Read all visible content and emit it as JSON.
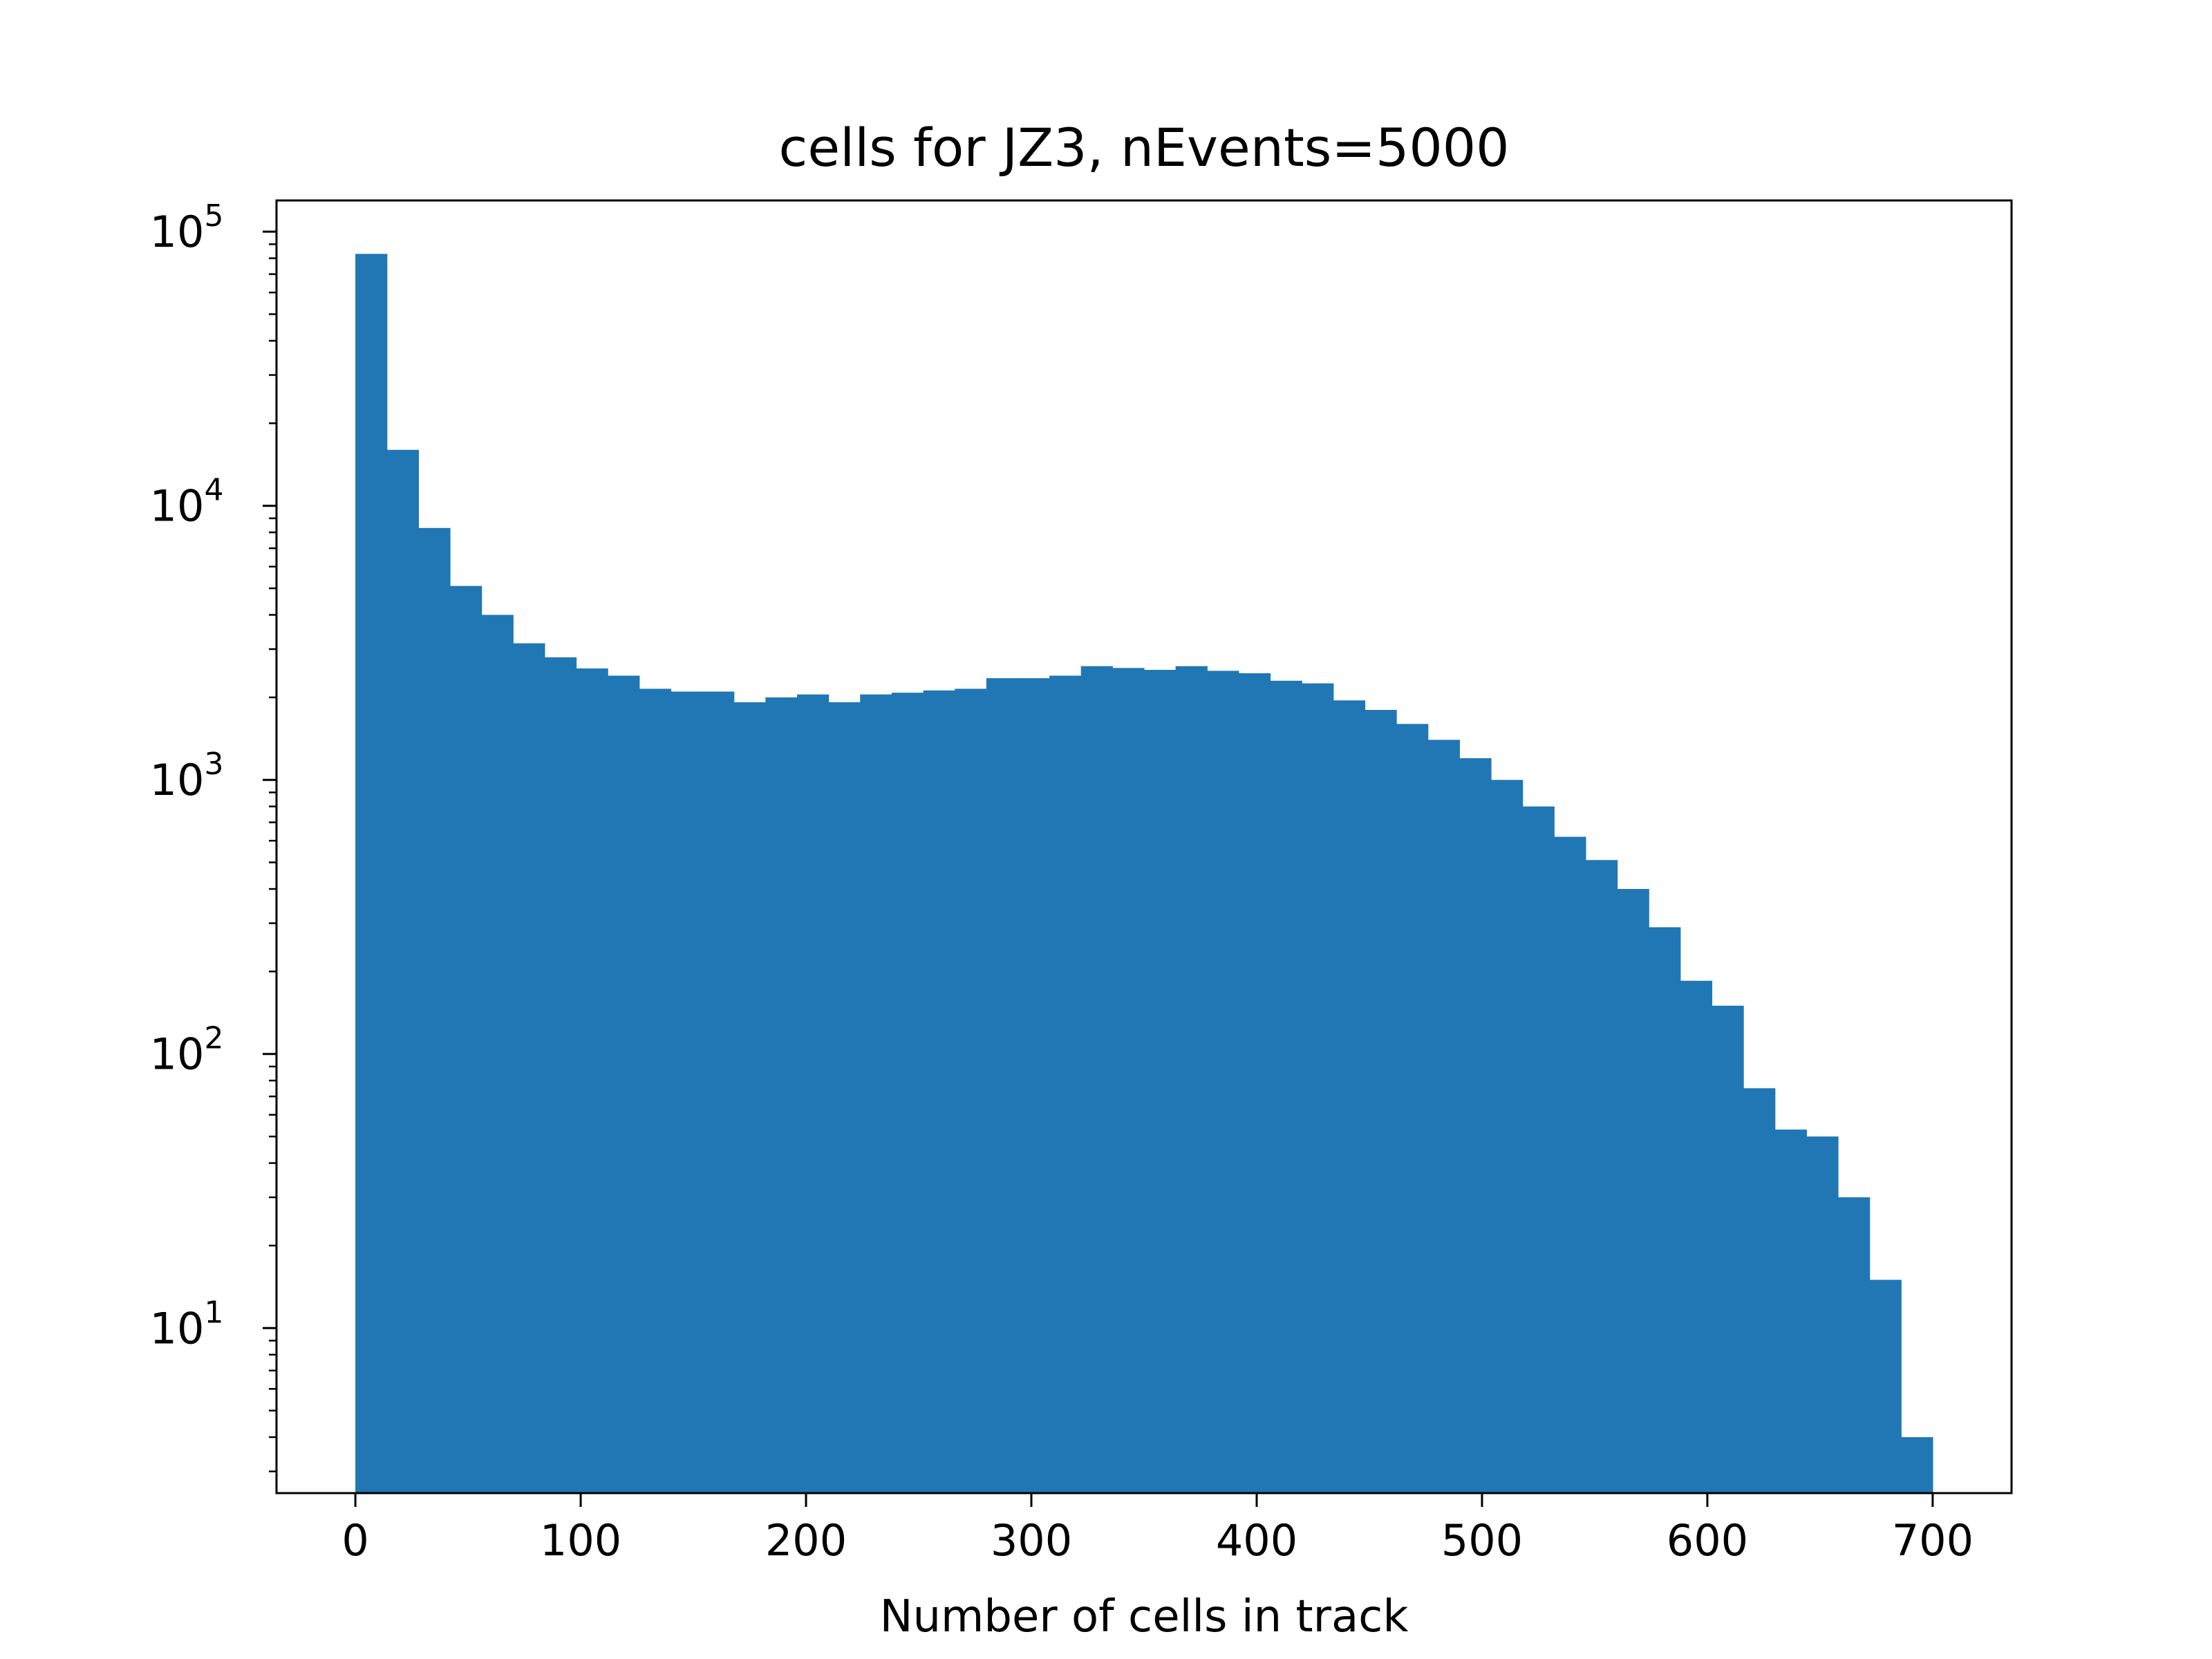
{
  "chart_data": {
    "type": "bar",
    "title": "cells for JZ3, nEvents=5000",
    "xlabel": "Number of cells in track",
    "ylabel": "",
    "yscale": "log",
    "xlim": [
      -35,
      735
    ],
    "ylim": [
      2.5,
      130000
    ],
    "xticks": [
      0,
      100,
      200,
      300,
      400,
      500,
      600,
      700
    ],
    "yticks": [
      {
        "value": 10,
        "base": "10",
        "exponent": "1"
      },
      {
        "value": 100,
        "base": "10",
        "exponent": "2"
      },
      {
        "value": 1000,
        "base": "10",
        "exponent": "3"
      },
      {
        "value": 10000,
        "base": "10",
        "exponent": "4"
      },
      {
        "value": 100000,
        "base": "10",
        "exponent": "5"
      }
    ],
    "grid": false,
    "bar_color": "#2077b4",
    "bin_edges": [
      0,
      14,
      28,
      42,
      56,
      70,
      84,
      98,
      112,
      126,
      140,
      154,
      168,
      182,
      196,
      210,
      224,
      238,
      252,
      266,
      280,
      294,
      308,
      322,
      336,
      350,
      364,
      378,
      392,
      406,
      420,
      434,
      448,
      462,
      476,
      490,
      504,
      518,
      532,
      546,
      560,
      574,
      588,
      602,
      616,
      630,
      644,
      658,
      672,
      686,
      700
    ],
    "values": [
      83000,
      16000,
      8300,
      5100,
      4000,
      3150,
      2800,
      2550,
      2400,
      2150,
      2100,
      2100,
      1920,
      2000,
      2050,
      1920,
      2050,
      2080,
      2120,
      2150,
      2350,
      2350,
      2400,
      2600,
      2560,
      2520,
      2600,
      2500,
      2450,
      2300,
      2250,
      1950,
      1800,
      1600,
      1400,
      1200,
      1000,
      800,
      620,
      510,
      400,
      290,
      185,
      150,
      75,
      53,
      50,
      30,
      15,
      4
    ]
  }
}
